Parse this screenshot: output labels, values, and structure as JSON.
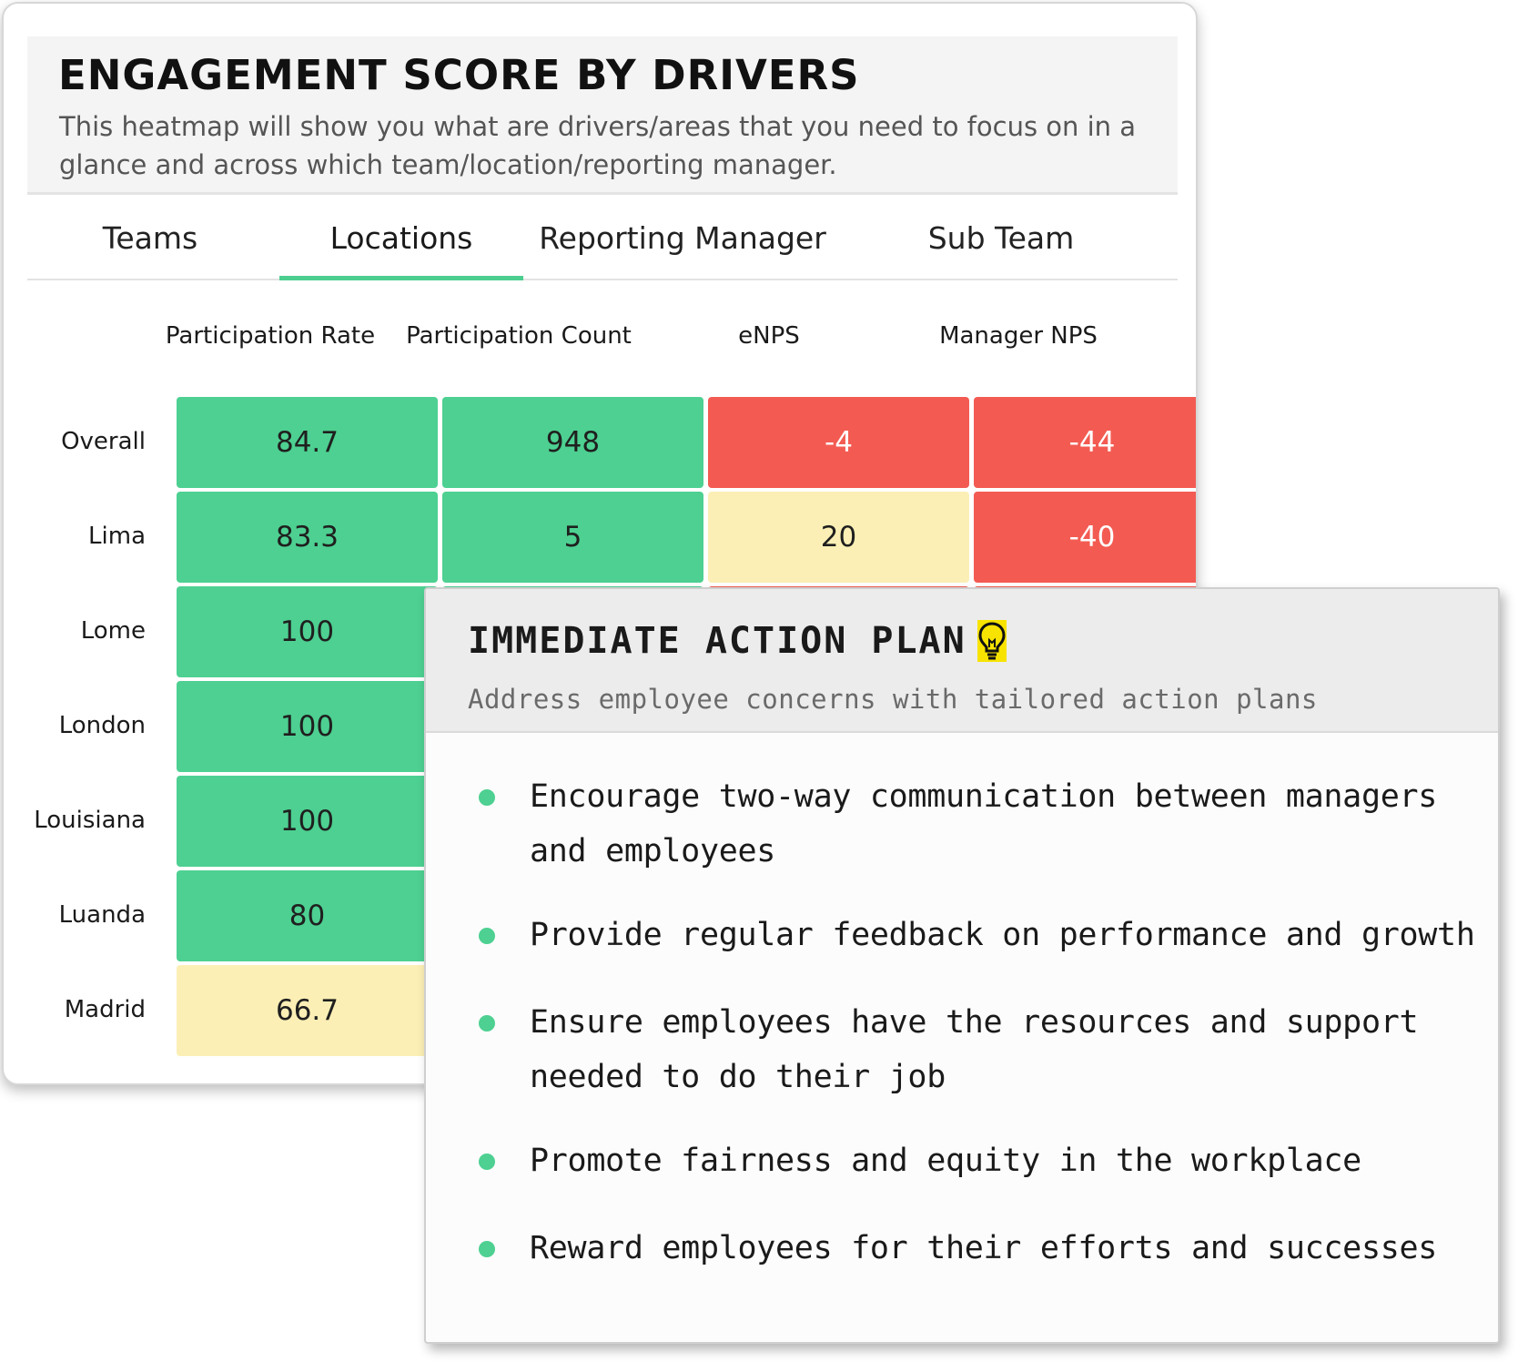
{
  "heatmap": {
    "title": "ENGAGEMENT SCORE BY DRIVERS",
    "description": "This heatmap will show you what are drivers/areas that you need to focus on in a glance and across which team/location/reporting manager.",
    "tabs": [
      {
        "label": "Teams",
        "active": false
      },
      {
        "label": "Locations",
        "active": true
      },
      {
        "label": "Reporting Manager",
        "active": false
      },
      {
        "label": "Sub Team",
        "active": false
      }
    ],
    "columns": [
      "Participation Rate",
      "Participation Count",
      "eNPS",
      "Manager NPS"
    ],
    "rows": [
      {
        "label": "Overall",
        "values": [
          "84.7",
          "948",
          "-4",
          "-44"
        ],
        "levels": [
          "green",
          "green",
          "red",
          "red"
        ]
      },
      {
        "label": "Lima",
        "values": [
          "83.3",
          "5",
          "20",
          "-40"
        ],
        "levels": [
          "green",
          "green",
          "yellow",
          "red"
        ]
      },
      {
        "label": "Lome",
        "values": [
          "100"
        ],
        "levels": [
          "green"
        ]
      },
      {
        "label": "London",
        "values": [
          "100"
        ],
        "levels": [
          "green"
        ]
      },
      {
        "label": "Louisiana",
        "values": [
          "100"
        ],
        "levels": [
          "green"
        ]
      },
      {
        "label": "Luanda",
        "values": [
          "80"
        ],
        "levels": [
          "green"
        ]
      },
      {
        "label": "Madrid",
        "values": [
          "66.7"
        ],
        "levels": [
          "yellow"
        ]
      }
    ],
    "colors": {
      "green": "#4dd091",
      "yellow": "#fbefb5",
      "red": "#f35b52",
      "tab_accent": "#4cce8e"
    }
  },
  "action_plan": {
    "title": "IMMEDIATE ACTION PLAN",
    "title_icon": "lightbulb-icon",
    "subtitle": "Address employee concerns with tailored action plans",
    "items": [
      "Encourage two-way communication between managers and employees",
      "Provide regular feedback on performance and growth",
      "Ensure employees have the resources and support needed to do their job",
      "Promote fairness and equity in the workplace",
      "Reward employees for their efforts and successes"
    ]
  }
}
